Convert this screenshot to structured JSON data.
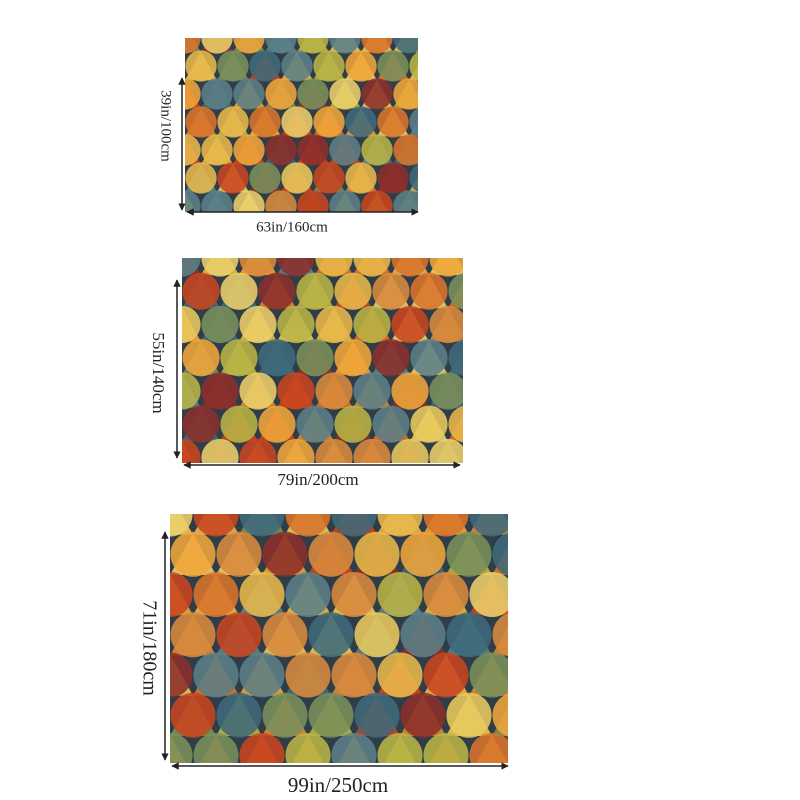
{
  "sizes": [
    {
      "width_label": "63in/160cm",
      "height_label": "39in/100cm"
    },
    {
      "width_label": "79in/200cm",
      "height_label": "55in/140cm"
    },
    {
      "width_label": "99in/250cm",
      "height_label": "71in/180cm"
    }
  ]
}
